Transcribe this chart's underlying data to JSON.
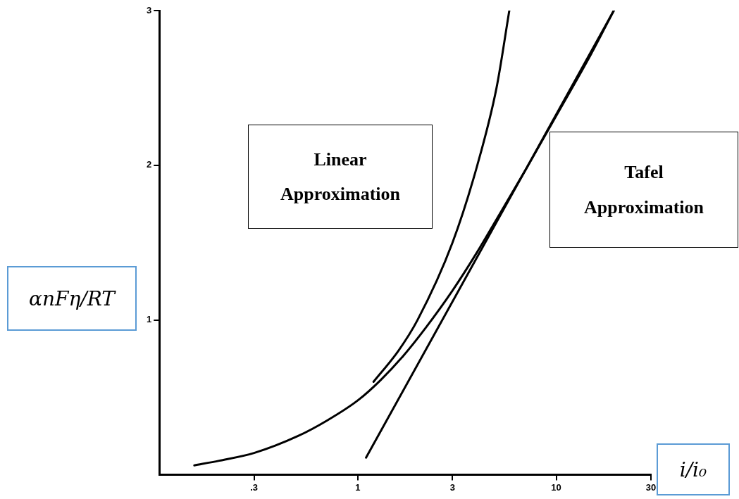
{
  "chart_data": {
    "type": "line",
    "xlabel": "i/i₀",
    "ylabel": "αnFη/RT",
    "log": "x",
    "grid": false,
    "marker": "none",
    "line_style": "solid",
    "xlim": [
      0.1,
      30
    ],
    "ylim": [
      0,
      3
    ],
    "xticks": [
      {
        "value": 0.3,
        "label": ".3"
      },
      1,
      3,
      10,
      30
    ],
    "yticks": [
      1,
      2,
      3
    ],
    "annotations": [
      "Linear Approximation",
      "Tafel Approximation"
    ],
    "series": [
      {
        "color": "#000000",
        "x": [
          0.15,
          0.2,
          0.3,
          0.5,
          0.7,
          1,
          1.3,
          1.7,
          2.2,
          3,
          4,
          5,
          7,
          10,
          15,
          19.5
        ],
        "values": [
          0.06,
          0.09,
          0.14,
          0.25,
          0.35,
          0.48,
          0.61,
          0.77,
          0.95,
          1.19,
          1.44,
          1.65,
          1.97,
          2.32,
          2.72,
          3.0
        ]
      },
      {
        "color": "#000000",
        "x": [
          1.2,
          1.6,
          2,
          3,
          4,
          5,
          5.8
        ],
        "values": [
          0.6,
          0.8,
          1.0,
          1.5,
          2.0,
          2.5,
          3.0
        ]
      },
      {
        "color": "#000000",
        "x": [
          1.1,
          19.5
        ],
        "values": [
          0.11,
          3.0
        ]
      }
    ]
  }
}
